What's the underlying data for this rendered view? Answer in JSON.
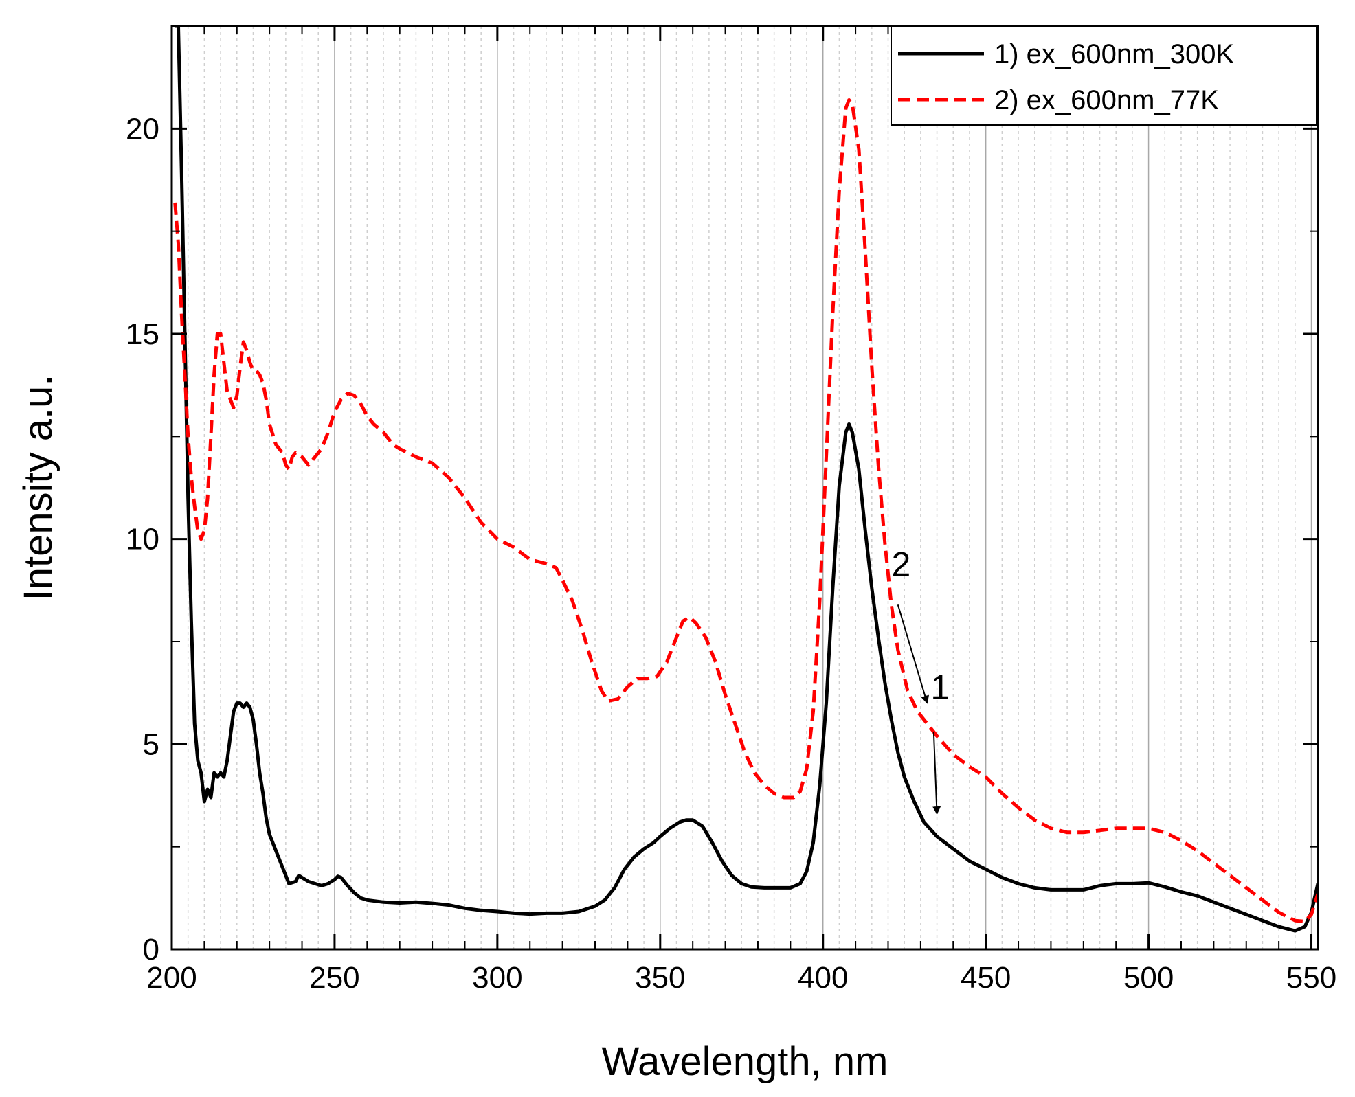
{
  "chart_data": {
    "type": "line",
    "title": "",
    "xlabel": "Wavelength, nm",
    "ylabel": "Intensity a.u.",
    "xlim": [
      200,
      552
    ],
    "ylim": [
      0,
      22.5
    ],
    "xticks": [
      200,
      250,
      300,
      350,
      400,
      450,
      500,
      550
    ],
    "yticks": [
      0,
      5,
      10,
      15,
      20
    ],
    "grid": "vertical",
    "legend_position": "top-right",
    "series": [
      {
        "name": "1) ex_600nm_300K",
        "color": "#000000",
        "dash": "solid",
        "points": [
          [
            201,
            22.5
          ],
          [
            202,
            22.5
          ],
          [
            203,
            19
          ],
          [
            204,
            15
          ],
          [
            205,
            11
          ],
          [
            206,
            8
          ],
          [
            207,
            5.5
          ],
          [
            208,
            4.6
          ],
          [
            209,
            4.3
          ],
          [
            210,
            3.6
          ],
          [
            211,
            3.9
          ],
          [
            212,
            3.7
          ],
          [
            213,
            4.3
          ],
          [
            214,
            4.2
          ],
          [
            215,
            4.3
          ],
          [
            216,
            4.2
          ],
          [
            217,
            4.6
          ],
          [
            218,
            5.2
          ],
          [
            219,
            5.8
          ],
          [
            220,
            6.0
          ],
          [
            221,
            6.0
          ],
          [
            222,
            5.9
          ],
          [
            223,
            6.0
          ],
          [
            224,
            5.9
          ],
          [
            225,
            5.6
          ],
          [
            226,
            5.0
          ],
          [
            227,
            4.3
          ],
          [
            228,
            3.8
          ],
          [
            229,
            3.2
          ],
          [
            230,
            2.8
          ],
          [
            232,
            2.4
          ],
          [
            234,
            2.0
          ],
          [
            236,
            1.6
          ],
          [
            238,
            1.65
          ],
          [
            239,
            1.8
          ],
          [
            240,
            1.75
          ],
          [
            242,
            1.65
          ],
          [
            244,
            1.6
          ],
          [
            246,
            1.55
          ],
          [
            248,
            1.6
          ],
          [
            250,
            1.7
          ],
          [
            251,
            1.78
          ],
          [
            252,
            1.75
          ],
          [
            254,
            1.55
          ],
          [
            256,
            1.38
          ],
          [
            258,
            1.25
          ],
          [
            260,
            1.2
          ],
          [
            265,
            1.15
          ],
          [
            270,
            1.13
          ],
          [
            275,
            1.15
          ],
          [
            280,
            1.12
          ],
          [
            285,
            1.08
          ],
          [
            290,
            1.0
          ],
          [
            295,
            0.95
          ],
          [
            300,
            0.92
          ],
          [
            305,
            0.88
          ],
          [
            310,
            0.86
          ],
          [
            315,
            0.88
          ],
          [
            320,
            0.88
          ],
          [
            325,
            0.92
          ],
          [
            330,
            1.05
          ],
          [
            333,
            1.2
          ],
          [
            336,
            1.5
          ],
          [
            339,
            1.95
          ],
          [
            342,
            2.25
          ],
          [
            345,
            2.45
          ],
          [
            348,
            2.6
          ],
          [
            350,
            2.75
          ],
          [
            353,
            2.95
          ],
          [
            356,
            3.1
          ],
          [
            358,
            3.15
          ],
          [
            360,
            3.15
          ],
          [
            363,
            3.0
          ],
          [
            366,
            2.6
          ],
          [
            369,
            2.15
          ],
          [
            372,
            1.8
          ],
          [
            375,
            1.6
          ],
          [
            378,
            1.52
          ],
          [
            382,
            1.5
          ],
          [
            386,
            1.5
          ],
          [
            390,
            1.5
          ],
          [
            393,
            1.6
          ],
          [
            395,
            1.9
          ],
          [
            397,
            2.6
          ],
          [
            399,
            4.0
          ],
          [
            401,
            6.0
          ],
          [
            403,
            8.8
          ],
          [
            405,
            11.3
          ],
          [
            407,
            12.6
          ],
          [
            408,
            12.8
          ],
          [
            409,
            12.6
          ],
          [
            411,
            11.7
          ],
          [
            413,
            10.2
          ],
          [
            415,
            8.8
          ],
          [
            417,
            7.6
          ],
          [
            419,
            6.5
          ],
          [
            421,
            5.6
          ],
          [
            423,
            4.8
          ],
          [
            425,
            4.2
          ],
          [
            428,
            3.6
          ],
          [
            431,
            3.1
          ],
          [
            435,
            2.75
          ],
          [
            440,
            2.45
          ],
          [
            445,
            2.15
          ],
          [
            450,
            1.95
          ],
          [
            455,
            1.75
          ],
          [
            460,
            1.6
          ],
          [
            465,
            1.5
          ],
          [
            470,
            1.45
          ],
          [
            475,
            1.45
          ],
          [
            480,
            1.45
          ],
          [
            485,
            1.55
          ],
          [
            490,
            1.6
          ],
          [
            495,
            1.6
          ],
          [
            500,
            1.62
          ],
          [
            505,
            1.52
          ],
          [
            510,
            1.4
          ],
          [
            515,
            1.3
          ],
          [
            520,
            1.15
          ],
          [
            525,
            1.0
          ],
          [
            530,
            0.85
          ],
          [
            535,
            0.7
          ],
          [
            540,
            0.55
          ],
          [
            545,
            0.45
          ],
          [
            548,
            0.55
          ],
          [
            550,
            0.9
          ],
          [
            552,
            1.6
          ]
        ]
      },
      {
        "name": "2) ex_600nm_77K",
        "color": "#ff0000",
        "dash": "dashed",
        "points": [
          [
            201,
            18.2
          ],
          [
            202,
            17.2
          ],
          [
            203,
            15.5
          ],
          [
            204,
            14.0
          ],
          [
            205,
            12.5
          ],
          [
            206,
            11.5
          ],
          [
            207,
            10.8
          ],
          [
            208,
            10.2
          ],
          [
            209,
            10.0
          ],
          [
            210,
            10.2
          ],
          [
            211,
            11.0
          ],
          [
            212,
            12.5
          ],
          [
            213,
            14.0
          ],
          [
            214,
            15.0
          ],
          [
            215,
            15.0
          ],
          [
            216,
            14.3
          ],
          [
            217,
            13.6
          ],
          [
            218,
            13.4
          ],
          [
            219,
            13.2
          ],
          [
            220,
            13.5
          ],
          [
            221,
            14.2
          ],
          [
            222,
            14.8
          ],
          [
            223,
            14.6
          ],
          [
            224,
            14.3
          ],
          [
            225,
            14.1
          ],
          [
            226,
            14.1
          ],
          [
            227,
            14.0
          ],
          [
            228,
            13.8
          ],
          [
            229,
            13.4
          ],
          [
            230,
            12.8
          ],
          [
            232,
            12.3
          ],
          [
            234,
            12.1
          ],
          [
            235,
            11.8
          ],
          [
            236,
            11.7
          ],
          [
            237,
            12.0
          ],
          [
            238,
            12.1
          ],
          [
            240,
            12.0
          ],
          [
            242,
            11.8
          ],
          [
            244,
            12.0
          ],
          [
            246,
            12.2
          ],
          [
            248,
            12.6
          ],
          [
            250,
            13.1
          ],
          [
            252,
            13.4
          ],
          [
            254,
            13.55
          ],
          [
            256,
            13.5
          ],
          [
            258,
            13.3
          ],
          [
            260,
            13.0
          ],
          [
            262,
            12.8
          ],
          [
            265,
            12.6
          ],
          [
            268,
            12.3
          ],
          [
            270,
            12.2
          ],
          [
            275,
            12.0
          ],
          [
            280,
            11.85
          ],
          [
            285,
            11.5
          ],
          [
            290,
            11.0
          ],
          [
            295,
            10.4
          ],
          [
            300,
            10.0
          ],
          [
            305,
            9.8
          ],
          [
            310,
            9.5
          ],
          [
            315,
            9.4
          ],
          [
            318,
            9.3
          ],
          [
            320,
            9.0
          ],
          [
            323,
            8.5
          ],
          [
            326,
            7.8
          ],
          [
            329,
            7.0
          ],
          [
            332,
            6.3
          ],
          [
            334,
            6.05
          ],
          [
            337,
            6.1
          ],
          [
            340,
            6.4
          ],
          [
            343,
            6.6
          ],
          [
            346,
            6.6
          ],
          [
            349,
            6.65
          ],
          [
            352,
            7.0
          ],
          [
            355,
            7.6
          ],
          [
            357,
            8.0
          ],
          [
            359,
            8.1
          ],
          [
            361,
            7.95
          ],
          [
            364,
            7.6
          ],
          [
            367,
            7.0
          ],
          [
            370,
            6.2
          ],
          [
            373,
            5.5
          ],
          [
            376,
            4.8
          ],
          [
            379,
            4.3
          ],
          [
            382,
            4.0
          ],
          [
            385,
            3.8
          ],
          [
            388,
            3.7
          ],
          [
            391,
            3.7
          ],
          [
            393,
            3.85
          ],
          [
            395,
            4.4
          ],
          [
            397,
            5.8
          ],
          [
            399,
            8.5
          ],
          [
            401,
            12.0
          ],
          [
            403,
            15.5
          ],
          [
            405,
            18.5
          ],
          [
            407,
            20.5
          ],
          [
            408,
            20.7
          ],
          [
            409,
            20.6
          ],
          [
            411,
            19.5
          ],
          [
            413,
            17.0
          ],
          [
            415,
            14.2
          ],
          [
            417,
            11.8
          ],
          [
            419,
            9.9
          ],
          [
            421,
            8.4
          ],
          [
            423,
            7.3
          ],
          [
            426,
            6.3
          ],
          [
            429,
            5.8
          ],
          [
            432,
            5.5
          ],
          [
            435,
            5.2
          ],
          [
            440,
            4.75
          ],
          [
            445,
            4.45
          ],
          [
            450,
            4.2
          ],
          [
            455,
            3.8
          ],
          [
            460,
            3.45
          ],
          [
            465,
            3.15
          ],
          [
            470,
            2.95
          ],
          [
            475,
            2.85
          ],
          [
            480,
            2.85
          ],
          [
            485,
            2.9
          ],
          [
            490,
            2.95
          ],
          [
            495,
            2.95
          ],
          [
            500,
            2.95
          ],
          [
            505,
            2.85
          ],
          [
            510,
            2.65
          ],
          [
            515,
            2.4
          ],
          [
            520,
            2.1
          ],
          [
            525,
            1.8
          ],
          [
            530,
            1.5
          ],
          [
            535,
            1.2
          ],
          [
            540,
            0.9
          ],
          [
            545,
            0.7
          ],
          [
            548,
            0.68
          ],
          [
            550,
            0.85
          ],
          [
            552,
            1.35
          ]
        ]
      }
    ],
    "annotations": [
      {
        "label": "2",
        "text_x": 424,
        "text_y": 9.1,
        "from_x": 423,
        "from_y": 8.4,
        "to_x": 432,
        "to_y": 6.0
      },
      {
        "label": "1",
        "text_x": 436,
        "text_y": 6.1,
        "from_x": 434,
        "from_y": 5.3,
        "to_x": 435,
        "to_y": 3.3
      }
    ]
  }
}
